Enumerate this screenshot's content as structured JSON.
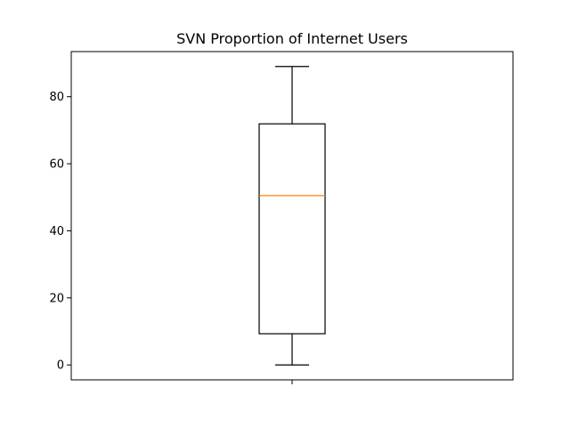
{
  "chart_data": {
    "type": "box",
    "title": "SVN Proportion of Internet Users",
    "xlabel": "",
    "ylabel": "",
    "ylim": [
      -4.45,
      93.45
    ],
    "yticks": [
      0,
      20,
      40,
      60,
      80
    ],
    "grid": false,
    "series": [
      {
        "whisker_low": 0,
        "q1": 9.3,
        "median": 50.5,
        "q3": 71.9,
        "whisker_high": 89.0
      }
    ],
    "colors": {
      "box": "#000000",
      "median": "#ff7f0e"
    }
  }
}
